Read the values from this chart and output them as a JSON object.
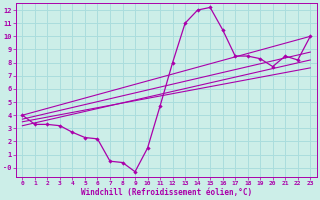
{
  "xlabel": "Windchill (Refroidissement éolien,°C)",
  "bg_color": "#cceee8",
  "grid_color": "#aadddd",
  "line_color": "#aa00aa",
  "xlim": [
    -0.5,
    23.5
  ],
  "ylim": [
    -0.7,
    12.5
  ],
  "yticks": [
    0,
    1,
    2,
    3,
    4,
    5,
    6,
    7,
    8,
    9,
    10,
    11,
    12
  ],
  "ytick_labels": [
    "-0",
    "1",
    "2",
    "3",
    "4",
    "5",
    "6",
    "7",
    "8",
    "9",
    "10",
    "11",
    "12"
  ],
  "xticks": [
    0,
    1,
    2,
    3,
    4,
    5,
    6,
    7,
    8,
    9,
    10,
    11,
    12,
    13,
    14,
    15,
    16,
    17,
    18,
    19,
    20,
    21,
    22,
    23
  ],
  "main_x": [
    0,
    1,
    2,
    3,
    4,
    5,
    6,
    7,
    8,
    9,
    10,
    11,
    12,
    13,
    14,
    15,
    16,
    17,
    18,
    19,
    20,
    21,
    22,
    23
  ],
  "main_y": [
    4.0,
    3.3,
    3.3,
    3.2,
    2.7,
    2.3,
    2.2,
    0.5,
    0.4,
    -0.3,
    1.5,
    4.7,
    8.0,
    11.0,
    12.0,
    12.2,
    10.5,
    8.5,
    8.5,
    8.3,
    7.7,
    8.5,
    8.2,
    10.0
  ],
  "diag_lines": [
    {
      "x": [
        0,
        23
      ],
      "y": [
        4.0,
        10.0
      ]
    },
    {
      "x": [
        0,
        23
      ],
      "y": [
        3.7,
        8.8
      ]
    },
    {
      "x": [
        0,
        23
      ],
      "y": [
        3.2,
        8.2
      ]
    },
    {
      "x": [
        0,
        23
      ],
      "y": [
        3.5,
        7.6
      ]
    }
  ]
}
